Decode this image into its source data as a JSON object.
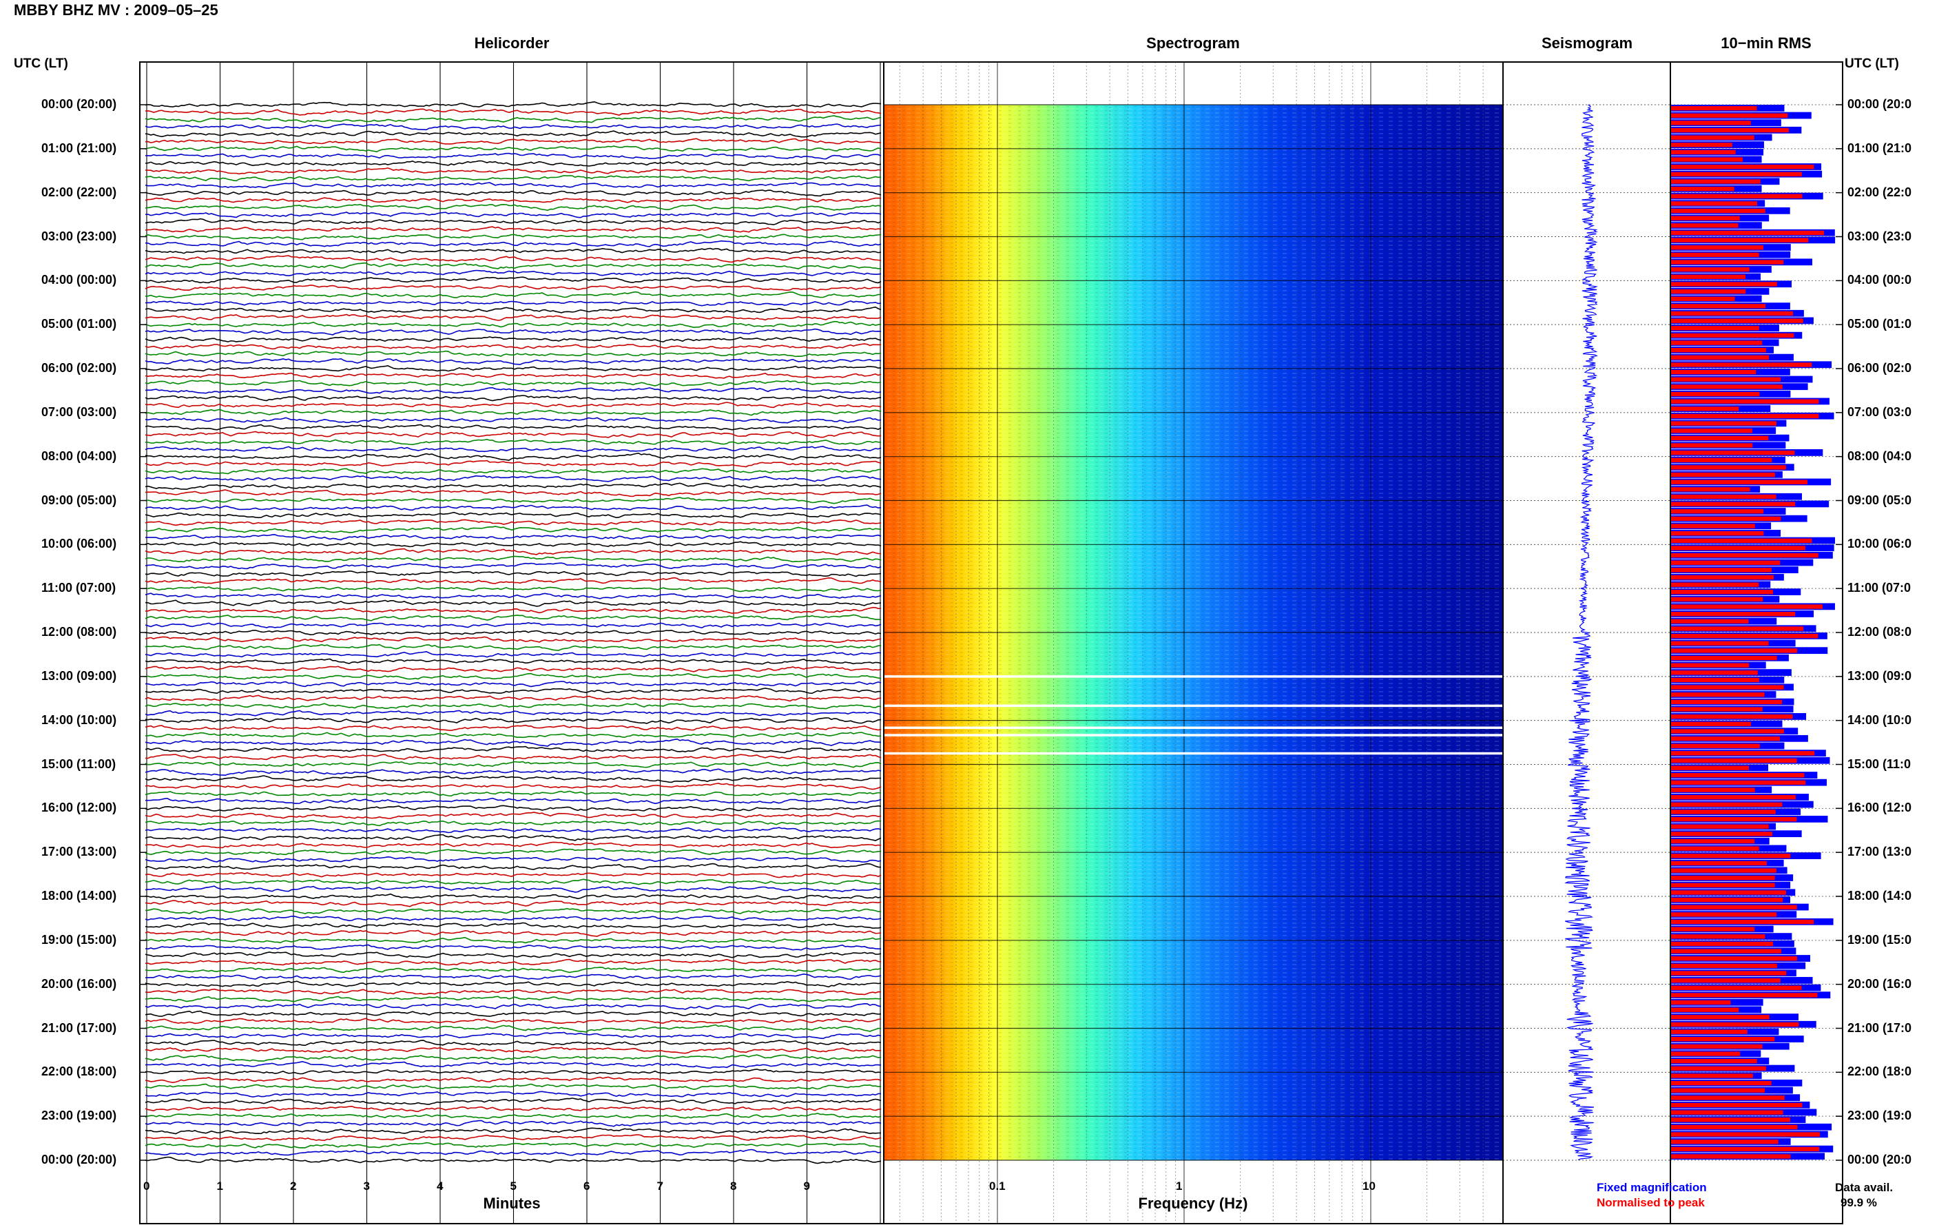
{
  "title": "MBBY BHZ MV : 2009–05–25",
  "panels": {
    "helicorder": "Helicorder",
    "spectrogram": "Spectrogram",
    "seismogram": "Seismogram",
    "rms": "10−min RMS"
  },
  "time_axis_header": "UTC (LT)",
  "time_labels": [
    "00:00 (20:00)",
    "01:00 (21:00)",
    "02:00 (22:00)",
    "03:00 (23:00)",
    "04:00 (00:00)",
    "05:00 (01:00)",
    "06:00 (02:00)",
    "07:00 (03:00)",
    "08:00 (04:00)",
    "09:00 (05:00)",
    "10:00 (06:00)",
    "11:00 (07:00)",
    "12:00 (08:00)",
    "13:00 (09:00)",
    "14:00 (10:00)",
    "15:00 (11:00)",
    "16:00 (12:00)",
    "17:00 (13:00)",
    "18:00 (14:00)",
    "19:00 (15:00)",
    "20:00 (16:00)",
    "21:00 (17:00)",
    "22:00 (18:00)",
    "23:00 (19:00)",
    "00:00 (20:00)"
  ],
  "right_time_labels": [
    "00:00 (20:0",
    "01:00 (21:0",
    "02:00 (22:0",
    "03:00 (23:0",
    "04:00 (00:0",
    "05:00 (01:0",
    "06:00 (02:0",
    "07:00 (03:0",
    "08:00 (04:0",
    "09:00 (05:0",
    "10:00 (06:0",
    "11:00 (07:0",
    "12:00 (08:0",
    "13:00 (09:0",
    "14:00 (10:0",
    "15:00 (11:0",
    "16:00 (12:0",
    "17:00 (13:0",
    "18:00 (14:0",
    "19:00 (15:0",
    "20:00 (16:0",
    "21:00 (17:0",
    "22:00 (18:0",
    "23:00 (19:0",
    "00:00 (20:0"
  ],
  "minutes_ticks": [
    "0",
    "1",
    "2",
    "3",
    "4",
    "5",
    "6",
    "7",
    "8",
    "9"
  ],
  "minutes_label": "Minutes",
  "freq_ticks": [
    "0.1",
    "1",
    "10"
  ],
  "freq_label": "Frequency (Hz)",
  "legend": {
    "fixed": "Fixed magnification",
    "normalised": "Normalised to peak",
    "fixed_color": "#0000ff",
    "normalised_color": "#ff0000",
    "data_avail_label": "Data avail.",
    "data_avail_value": "99.9 %"
  },
  "chart_data": [
    {
      "type": "line",
      "panel": "Helicorder",
      "xlabel": "Minutes",
      "xlim": [
        0,
        10
      ],
      "ylim": [
        "00:00",
        "24:00"
      ],
      "traces_per_hour": 6,
      "trace_colors": [
        "#000000",
        "#cc0000",
        "#008800",
        "#0000cc"
      ]
    },
    {
      "type": "heatmap",
      "panel": "Spectrogram",
      "xlabel": "Frequency (Hz)",
      "xscale": "log",
      "xlim": [
        0.02,
        50
      ],
      "ylim": [
        "00:00",
        "24:00"
      ],
      "colormap": "jet",
      "gaps_utc": [
        "13:00",
        "13:40",
        "14:10",
        "14:20",
        "14:45"
      ]
    },
    {
      "type": "line",
      "panel": "Seismogram",
      "ylim": [
        "00:00",
        "24:00"
      ],
      "color": "#0000ff"
    },
    {
      "type": "bar",
      "panel": "10-min RMS",
      "orientation": "horizontal",
      "bins_per_hour": 6,
      "series": [
        {
          "name": "Fixed magnification",
          "color": "#0000ff"
        },
        {
          "name": "Normalised to peak",
          "color": "#ff0000"
        }
      ]
    }
  ]
}
